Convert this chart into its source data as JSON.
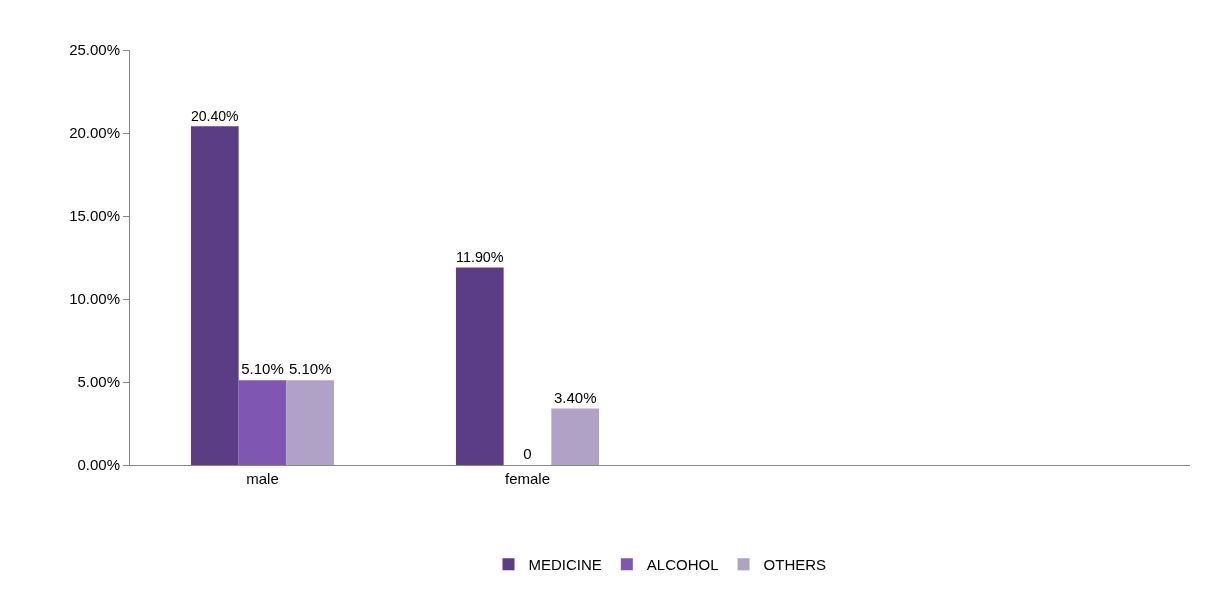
{
  "chart_data": {
    "type": "bar",
    "categories": [
      "male",
      "female",
      null,
      null
    ],
    "series": [
      {
        "name": "MEDICINE",
        "color": "#5b3d86",
        "values": [
          20.4,
          11.9,
          null,
          null
        ],
        "value_labels": [
          "20.40%",
          "11.90%",
          null,
          null
        ]
      },
      {
        "name": "ALCOHOL",
        "color": "#7f56b2",
        "values": [
          5.1,
          0,
          null,
          null
        ],
        "value_labels": [
          "5.10%",
          "0",
          null,
          null
        ]
      },
      {
        "name": "OTHERS",
        "color": "#b0a2c6",
        "values": [
          5.1,
          3.4,
          null,
          null
        ],
        "value_labels": [
          "5.10%",
          "3.40%",
          null,
          null
        ]
      }
    ],
    "ylim": [
      0,
      25
    ],
    "yticks": [
      {
        "value": 0,
        "label": "0.00%"
      },
      {
        "value": 5,
        "label": "5.00%"
      },
      {
        "value": 10,
        "label": "10.00%"
      },
      {
        "value": 15,
        "label": "15.00%"
      },
      {
        "value": 20,
        "label": "20.00%"
      },
      {
        "value": 25,
        "label": "25.00%"
      }
    ],
    "legend": "bottom"
  }
}
